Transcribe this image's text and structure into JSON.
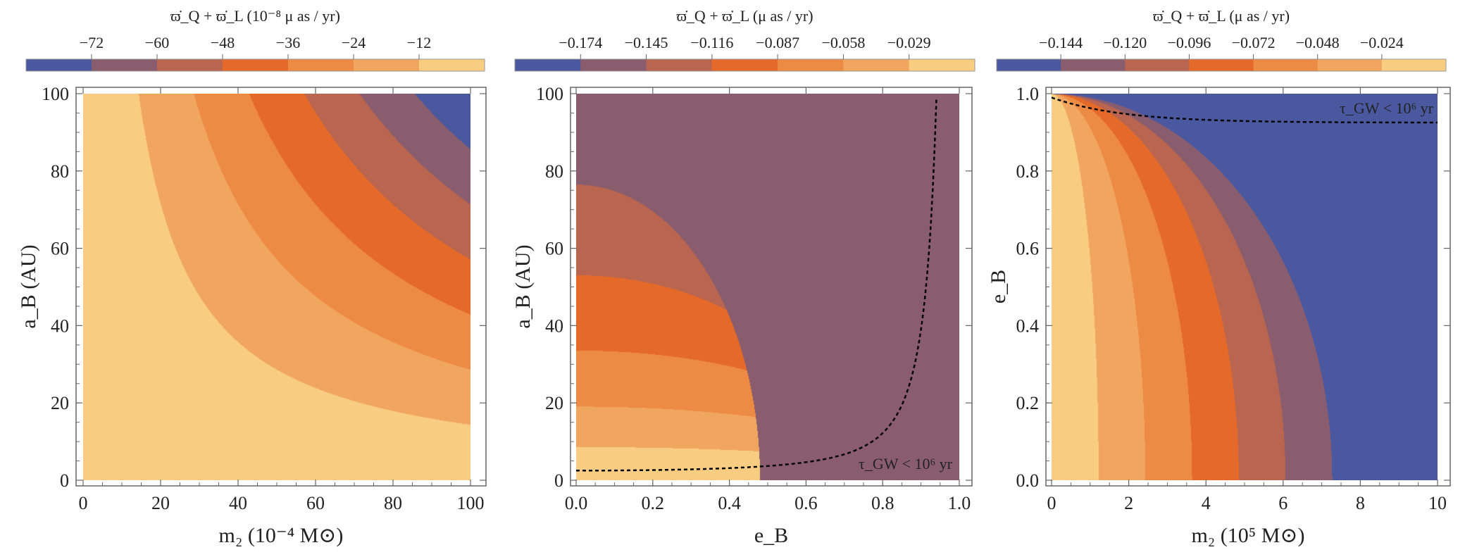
{
  "colors": {
    "bands": [
      "#f8cd81",
      "#f1a660",
      "#ed8a43",
      "#e56a2a",
      "#b9654f",
      "#8a5d6e",
      "#4a58a0"
    ],
    "frame": "#666666",
    "curve": "#000000"
  },
  "chart_data": [
    {
      "type": "contour",
      "colorbar": {
        "title": "ϖ̇_Q + ϖ̇_L (10⁻⁸ μ as / yr)",
        "ticks": [
          "−72",
          "−60",
          "−48",
          "−36",
          "−24",
          "−12"
        ],
        "levels": [
          -84,
          -72,
          -60,
          -48,
          -36,
          -24,
          -12,
          0
        ]
      },
      "xlabel": "m₂ (10⁻⁴ M⊙)",
      "ylabel": "a_B (AU)",
      "xlim": [
        0,
        100
      ],
      "ylim": [
        0,
        100
      ],
      "xticks": [
        "0",
        "20",
        "40",
        "60",
        "80",
        "100"
      ],
      "yticks": [
        "0",
        "20",
        "40",
        "60",
        "80",
        "100"
      ],
      "model": "value = -0.0084 * m2 * aB (10^-8 mu as/yr)",
      "coefficient": 0.0084,
      "annotation": null
    },
    {
      "type": "contour",
      "colorbar": {
        "title": "ϖ̇_Q + ϖ̇_L (μ as / yr)",
        "ticks": [
          "−0.174",
          "−0.145",
          "−0.116",
          "−0.087",
          "−0.058",
          "−0.029"
        ],
        "levels": [
          -0.203,
          -0.174,
          -0.145,
          -0.116,
          -0.087,
          -0.058,
          -0.029,
          0
        ]
      },
      "xlabel": "e_B",
      "ylabel": "a_B (AU)",
      "xlim": [
        0,
        1
      ],
      "ylim": [
        0,
        100
      ],
      "xticks": [
        "0.0",
        "0.2",
        "0.4",
        "0.6",
        "0.8",
        "1.0"
      ],
      "yticks": [
        "0",
        "20",
        "40",
        "60",
        "80",
        "100"
      ],
      "model": "level boundaries: (e/A)^2 + (aB/B)^2 = 1",
      "boundaries": [
        {
          "level": -0.029,
          "A": 0.975,
          "B": 8.5
        },
        {
          "level": -0.058,
          "A": 0.91,
          "B": 19
        },
        {
          "level": -0.087,
          "A": 0.84,
          "B": 33.5
        },
        {
          "level": -0.116,
          "A": 0.705,
          "B": 53
        },
        {
          "level": -0.145,
          "A": 0.48,
          "B": 76.5
        }
      ],
      "gw_curve": {
        "type": "x",
        "c": 2.5,
        "asym": 1.0
      },
      "annotation": "τ_GW < 10⁶ yr"
    },
    {
      "type": "contour",
      "colorbar": {
        "title": "ϖ̇_Q + ϖ̇_L (μ as / yr)",
        "ticks": [
          "−0.144",
          "−0.120",
          "−0.096",
          "−0.072",
          "−0.048",
          "−0.024"
        ],
        "levels": [
          -0.168,
          -0.144,
          -0.12,
          -0.096,
          -0.072,
          -0.048,
          -0.024,
          0
        ]
      },
      "xlabel": "m₂ (10⁵ M⊙)",
      "ylabel": "e_B",
      "xlim": [
        0,
        10
      ],
      "ylim": [
        0,
        1
      ],
      "xticks": [
        "0",
        "2",
        "4",
        "6",
        "8",
        "10"
      ],
      "yticks": [
        "0.0",
        "0.2",
        "0.4",
        "0.6",
        "0.8",
        "1.0"
      ],
      "model": "value = -0.01979 * m2 / sqrt(1 - e^2)",
      "coefficient": 0.01979,
      "gw_curve": {
        "type": "y",
        "start": 0.99,
        "end": 0.925
      },
      "annotation": "τ_GW < 10⁶ yr"
    }
  ]
}
